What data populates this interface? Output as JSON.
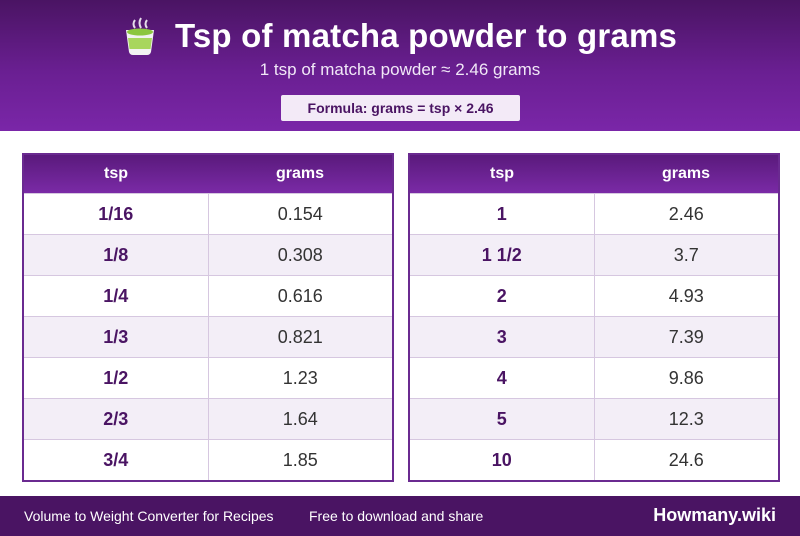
{
  "header": {
    "title": "Tsp of matcha powder to grams",
    "subtitle": "1 tsp of matcha powder ≈ 2.46 grams",
    "formula": "Formula: grams = tsp × 2.46",
    "icon": "matcha-cup-icon"
  },
  "tables": {
    "left": {
      "col1": "tsp",
      "col2": "grams",
      "rows": [
        [
          "1/16",
          "0.154"
        ],
        [
          "1/8",
          "0.308"
        ],
        [
          "1/4",
          "0.616"
        ],
        [
          "1/3",
          "0.821"
        ],
        [
          "1/2",
          "1.23"
        ],
        [
          "2/3",
          "1.64"
        ],
        [
          "3/4",
          "1.85"
        ]
      ]
    },
    "right": {
      "col1": "tsp",
      "col2": "grams",
      "rows": [
        [
          "1",
          "2.46"
        ],
        [
          "1 1/2",
          "3.7"
        ],
        [
          "2",
          "4.93"
        ],
        [
          "3",
          "7.39"
        ],
        [
          "4",
          "9.86"
        ],
        [
          "5",
          "12.3"
        ],
        [
          "10",
          "24.6"
        ]
      ]
    }
  },
  "footer": {
    "left_text": "Volume to Weight Converter for Recipes",
    "middle_text": "Free to download and share",
    "brand": "Howmany.wiki"
  },
  "colors": {
    "primary": "#6a1f92",
    "dark": "#4a1463",
    "row_alt": "#f3eef7"
  }
}
